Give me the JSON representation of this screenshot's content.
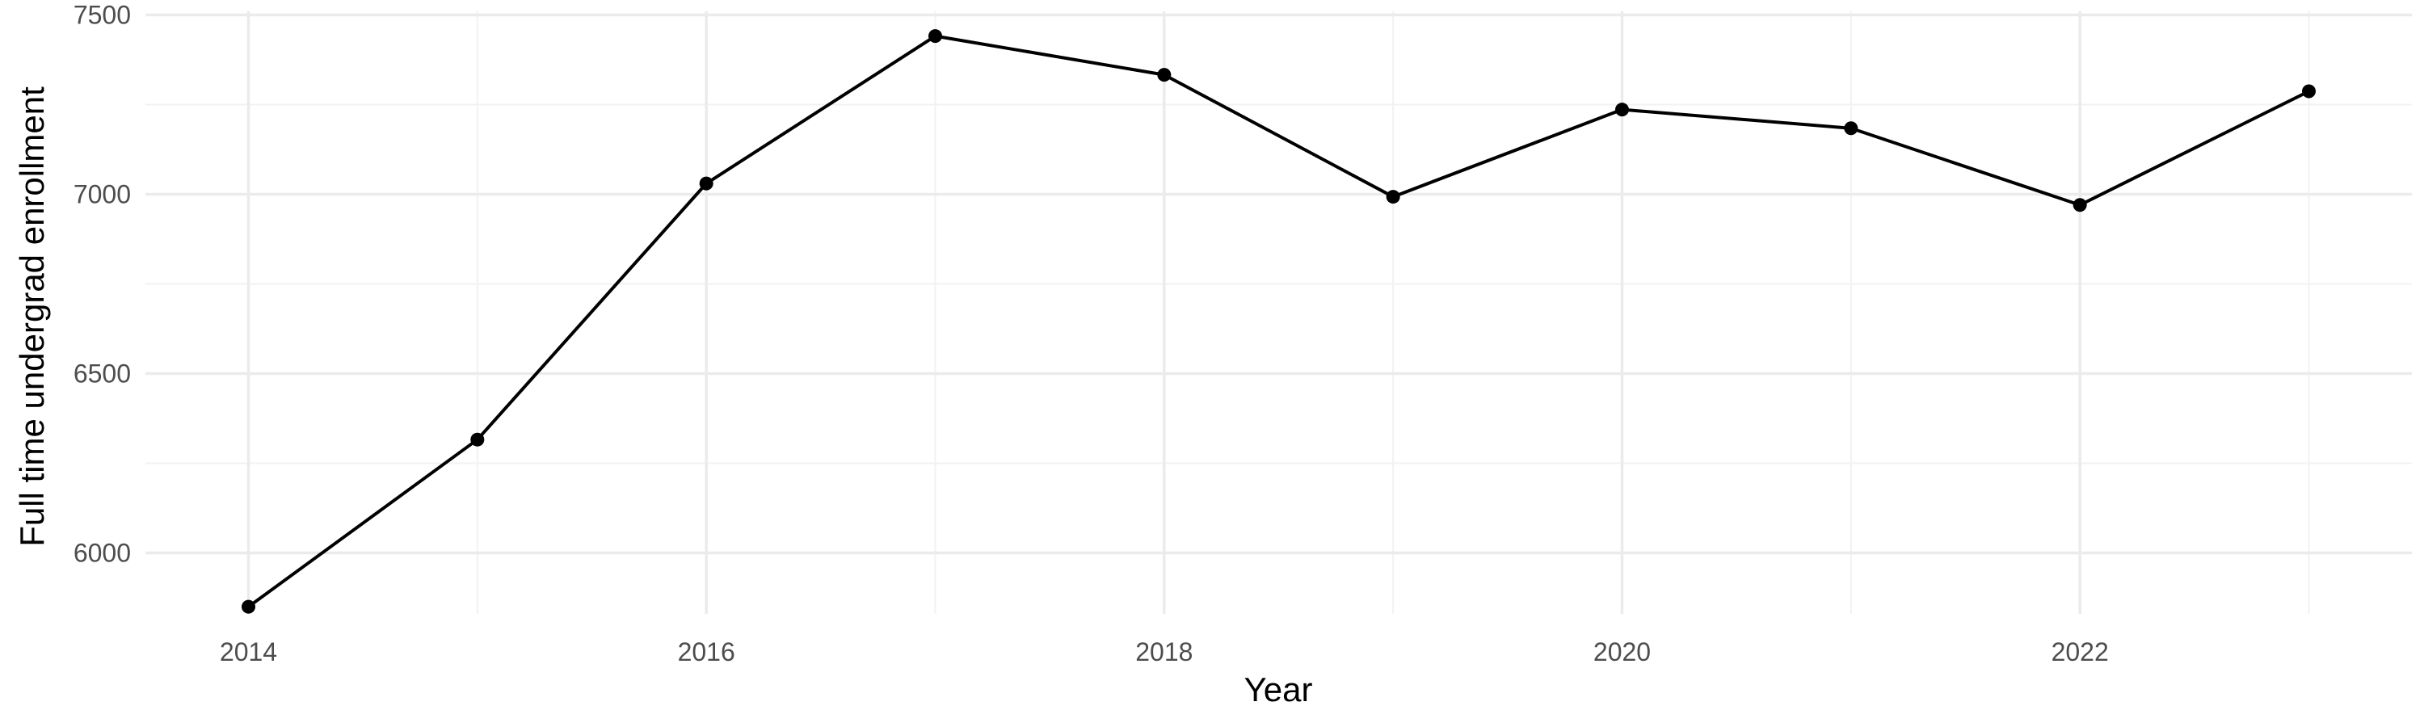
{
  "chart_data": {
    "type": "line",
    "title": "",
    "xlabel": "Year",
    "ylabel": "Full time undergrad enrollment",
    "x": [
      2014,
      2015,
      2016,
      2017,
      2018,
      2019,
      2020,
      2021,
      2022,
      2023
    ],
    "series": [
      {
        "values": [
          5850,
          6316,
          7030,
          7441,
          7333,
          6993,
          7236,
          7184,
          6970,
          7287
        ]
      }
    ],
    "xlim": [
      2013.55,
      2023.45
    ],
    "ylim": [
      5830,
      7510
    ],
    "x_ticks": [
      2014,
      2016,
      2018,
      2020,
      2022
    ],
    "x_tick_labels": [
      "2014",
      "2016",
      "2018",
      "2020",
      "2022"
    ],
    "y_ticks": [
      6000,
      6500,
      7000,
      7500
    ],
    "y_tick_labels": [
      "6000",
      "6500",
      "7000",
      "7500"
    ],
    "grid": true,
    "legend": "none",
    "colors": {
      "series": "#000000",
      "grid_major": "#ebebeb",
      "grid_minor": "#f2f2f2",
      "tick_text": "#4d4d4d"
    }
  }
}
